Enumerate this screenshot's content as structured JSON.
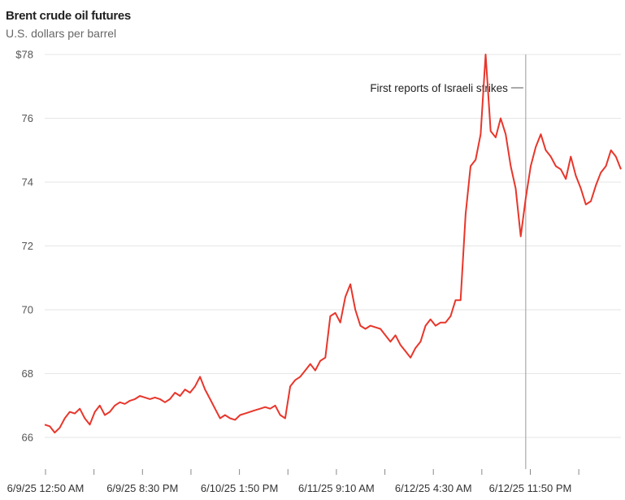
{
  "chart_data": {
    "type": "line",
    "title": "Brent crude oil futures",
    "subtitle": "U.S. dollars per barrel",
    "ylim": [
      65.2,
      78
    ],
    "y_ticks": [
      66,
      68,
      70,
      72,
      74,
      76,
      78
    ],
    "y_tick_labels": [
      "66",
      "68",
      "70",
      "72",
      "74",
      "76",
      "$78"
    ],
    "x_tick_labels": [
      "6/9/25 12:50 AM",
      "6/9/25 8:30 PM",
      "6/10/25 1:50 PM",
      "6/11/25 9:10 AM",
      "6/12/25 4:30 AM",
      "6/12/25 11:50 PM"
    ],
    "grid": true,
    "annotation": {
      "text": "First reports of Israeli strikes",
      "index": 96
    },
    "series": [
      {
        "color": "#e8362b",
        "values": [
          66.4,
          66.35,
          66.15,
          66.3,
          66.6,
          66.8,
          66.75,
          66.9,
          66.6,
          66.4,
          66.8,
          67.0,
          66.7,
          66.8,
          67.0,
          67.1,
          67.05,
          67.15,
          67.2,
          67.3,
          67.25,
          67.2,
          67.25,
          67.2,
          67.1,
          67.2,
          67.4,
          67.3,
          67.5,
          67.4,
          67.6,
          67.9,
          67.5,
          67.2,
          66.9,
          66.6,
          66.7,
          66.6,
          66.55,
          66.7,
          66.75,
          66.8,
          66.85,
          66.9,
          66.95,
          66.9,
          67.0,
          66.7,
          66.6,
          67.6,
          67.8,
          67.9,
          68.1,
          68.3,
          68.1,
          68.4,
          68.5,
          69.8,
          69.9,
          69.6,
          70.4,
          70.8,
          70.0,
          69.5,
          69.4,
          69.5,
          69.45,
          69.4,
          69.2,
          69.0,
          69.2,
          68.9,
          68.7,
          68.5,
          68.8,
          69.0,
          69.5,
          69.7,
          69.5,
          69.6,
          69.6,
          69.8,
          70.3,
          70.3,
          73.0,
          74.5,
          74.7,
          75.5,
          78.0,
          75.6,
          75.4,
          76.0,
          75.5,
          74.5,
          73.8,
          72.3,
          73.5,
          74.5,
          75.1,
          75.5,
          75.0,
          74.8,
          74.5,
          74.4,
          74.1,
          74.8,
          74.2,
          73.8,
          73.3,
          73.4,
          73.9,
          74.3,
          74.5,
          75.0,
          74.8,
          74.4
        ]
      }
    ]
  }
}
